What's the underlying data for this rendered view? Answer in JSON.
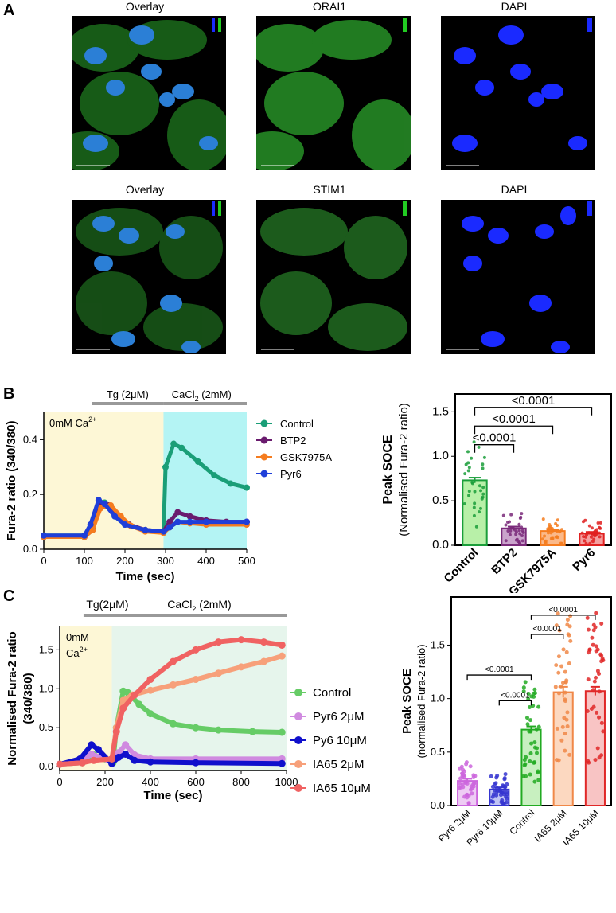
{
  "panels": {
    "a": {
      "letter": "A"
    },
    "b": {
      "letter": "B"
    },
    "c": {
      "letter": "C"
    }
  },
  "microscopy": {
    "row1": {
      "titles": [
        "Overlay",
        "ORAI1",
        "DAPI"
      ],
      "colors": [
        "#2aa12a",
        "#2aa12a",
        "#1020ff"
      ]
    },
    "row2": {
      "titles": [
        "Overlay",
        "STIM1",
        "DAPI"
      ],
      "colors": [
        "#2aa12a",
        "#2aa12a",
        "#1020ff"
      ]
    }
  },
  "chart_data": [
    {
      "id": "b_trace",
      "type": "line",
      "xlabel": "Time (sec)",
      "ylabel": "Fura-2 ratio (340/380)",
      "xlim": [
        0,
        500
      ],
      "ylim": [
        0,
        0.5
      ],
      "xticks": [
        0,
        100,
        200,
        300,
        400,
        500
      ],
      "yticks": [
        0.0,
        0.2,
        0.4
      ],
      "annotations": {
        "condition": "0mM Ca",
        "condition_sup": "2+",
        "bar1": "Tg (2μM)",
        "bar2_pre": "CaCl",
        "bar2_sub": "2",
        "bar2_post": " (2mM)"
      },
      "legend_position": "right",
      "series": [
        {
          "name": "Control",
          "color": "#1a9e77",
          "points": [
            [
              0,
              0.05
            ],
            [
              100,
              0.05
            ],
            [
              120,
              0.08
            ],
            [
              140,
              0.17
            ],
            [
              150,
              0.17
            ],
            [
              175,
              0.12
            ],
            [
              200,
              0.09
            ],
            [
              250,
              0.07
            ],
            [
              295,
              0.065
            ],
            [
              300,
              0.3
            ],
            [
              320,
              0.385
            ],
            [
              340,
              0.37
            ],
            [
              380,
              0.32
            ],
            [
              420,
              0.27
            ],
            [
              460,
              0.24
            ],
            [
              500,
              0.225
            ]
          ]
        },
        {
          "name": "BTP2",
          "color": "#6a1b6e",
          "points": [
            [
              0,
              0.045
            ],
            [
              100,
              0.045
            ],
            [
              120,
              0.07
            ],
            [
              140,
              0.16
            ],
            [
              160,
              0.16
            ],
            [
              185,
              0.12
            ],
            [
              210,
              0.09
            ],
            [
              250,
              0.07
            ],
            [
              295,
              0.065
            ],
            [
              310,
              0.1
            ],
            [
              330,
              0.135
            ],
            [
              360,
              0.12
            ],
            [
              400,
              0.105
            ],
            [
              450,
              0.1
            ],
            [
              500,
              0.1
            ]
          ]
        },
        {
          "name": "GSK7975A",
          "color": "#f57c1f",
          "points": [
            [
              0,
              0.045
            ],
            [
              100,
              0.045
            ],
            [
              120,
              0.07
            ],
            [
              140,
              0.15
            ],
            [
              165,
              0.16
            ],
            [
              190,
              0.12
            ],
            [
              215,
              0.085
            ],
            [
              250,
              0.065
            ],
            [
              295,
              0.06
            ],
            [
              310,
              0.08
            ],
            [
              330,
              0.1
            ],
            [
              360,
              0.095
            ],
            [
              400,
              0.09
            ],
            [
              500,
              0.09
            ]
          ]
        },
        {
          "name": "Pyr6",
          "color": "#1f3fd9",
          "points": [
            [
              0,
              0.05
            ],
            [
              100,
              0.05
            ],
            [
              115,
              0.09
            ],
            [
              135,
              0.18
            ],
            [
              150,
              0.165
            ],
            [
              175,
              0.12
            ],
            [
              200,
              0.09
            ],
            [
              250,
              0.07
            ],
            [
              295,
              0.065
            ],
            [
              310,
              0.08
            ],
            [
              330,
              0.1
            ],
            [
              360,
              0.1
            ],
            [
              400,
              0.1
            ],
            [
              500,
              0.1
            ]
          ]
        }
      ]
    },
    {
      "id": "b_bar",
      "type": "bar",
      "ylabel": "Peak SOCE",
      "ylabel2": "(Normalised Fura-2 ratio)",
      "categories": [
        "Control",
        "BTP2",
        "GSK7975A",
        "Pyr6"
      ],
      "values": [
        0.73,
        0.19,
        0.16,
        0.13
      ],
      "errors": [
        0.03,
        0.02,
        0.015,
        0.02
      ],
      "colors": [
        "#1a9e3a",
        "#7a2a7a",
        "#f57c1f",
        "#e02020"
      ],
      "fills": [
        "#b8f0a8",
        "#caa3cc",
        "#fbb98a",
        "#f4a0a0"
      ],
      "ylim": [
        0,
        1.7
      ],
      "yticks": [
        0.0,
        0.5,
        1.0,
        1.5
      ],
      "comparisons": [
        {
          "from": 0,
          "to": 1,
          "label": "<0.0001",
          "level": 1.13
        },
        {
          "from": 0,
          "to": 2,
          "label": "<0.0001",
          "level": 1.34
        },
        {
          "from": 0,
          "to": 3,
          "label": "<0.0001",
          "level": 1.55
        }
      ]
    },
    {
      "id": "c_trace",
      "type": "line",
      "xlabel": "Time (sec)",
      "ylabel": "Normalised Fura-2 ratio",
      "ylabel2": "(340/380)",
      "xlim": [
        0,
        1000
      ],
      "ylim": [
        -0.05,
        1.8
      ],
      "xticks": [
        0,
        200,
        400,
        600,
        800,
        1000
      ],
      "yticks": [
        0.0,
        0.5,
        1.0,
        1.5
      ],
      "annotations": {
        "condition1": "0mM",
        "condition2": "Ca",
        "condition_sup": "2+",
        "bar1": "Tg(2μM)",
        "bar2_pre": "CaCl",
        "bar2_sub": "2",
        "bar2_post": " (2mM)"
      },
      "legend_position": "right",
      "series": [
        {
          "name": "Control",
          "color": "#66cc66",
          "points": [
            [
              0,
              0.03
            ],
            [
              100,
              0.05
            ],
            [
              150,
              0.15
            ],
            [
              200,
              0.1
            ],
            [
              235,
              0.05
            ],
            [
              250,
              0.5
            ],
            [
              280,
              0.97
            ],
            [
              300,
              0.95
            ],
            [
              350,
              0.8
            ],
            [
              400,
              0.68
            ],
            [
              500,
              0.55
            ],
            [
              600,
              0.5
            ],
            [
              700,
              0.47
            ],
            [
              850,
              0.45
            ],
            [
              980,
              0.44
            ]
          ]
        },
        {
          "name": "Pyr6 2μM",
          "color": "#d08ae0",
          "points": [
            [
              0,
              0.03
            ],
            [
              100,
              0.08
            ],
            [
              140,
              0.16
            ],
            [
              180,
              0.12
            ],
            [
              230,
              0.05
            ],
            [
              260,
              0.18
            ],
            [
              290,
              0.28
            ],
            [
              330,
              0.15
            ],
            [
              400,
              0.1
            ],
            [
              600,
              0.1
            ],
            [
              980,
              0.1
            ]
          ]
        },
        {
          "name": "Py6 10μM",
          "color": "#1010cc",
          "points": [
            [
              0,
              0.03
            ],
            [
              90,
              0.1
            ],
            [
              140,
              0.28
            ],
            [
              170,
              0.22
            ],
            [
              230,
              0.04
            ],
            [
              260,
              0.12
            ],
            [
              290,
              0.16
            ],
            [
              330,
              0.08
            ],
            [
              400,
              0.06
            ],
            [
              600,
              0.05
            ],
            [
              980,
              0.04
            ]
          ]
        },
        {
          "name": "IA65 2μM",
          "color": "#f7a07a",
          "points": [
            [
              0,
              0.03
            ],
            [
              100,
              0.05
            ],
            [
              150,
              0.08
            ],
            [
              230,
              0.1
            ],
            [
              250,
              0.5
            ],
            [
              280,
              0.85
            ],
            [
              320,
              0.92
            ],
            [
              400,
              0.98
            ],
            [
              500,
              1.05
            ],
            [
              600,
              1.12
            ],
            [
              700,
              1.2
            ],
            [
              800,
              1.28
            ],
            [
              900,
              1.35
            ],
            [
              980,
              1.42
            ]
          ]
        },
        {
          "name": "IA65 10μM",
          "color": "#f06262",
          "points": [
            [
              0,
              0.03
            ],
            [
              100,
              0.05
            ],
            [
              150,
              0.08
            ],
            [
              230,
              0.1
            ],
            [
              250,
              0.45
            ],
            [
              280,
              0.75
            ],
            [
              330,
              0.92
            ],
            [
              400,
              1.12
            ],
            [
              500,
              1.35
            ],
            [
              600,
              1.5
            ],
            [
              700,
              1.6
            ],
            [
              800,
              1.63
            ],
            [
              900,
              1.6
            ],
            [
              980,
              1.56
            ]
          ]
        }
      ]
    },
    {
      "id": "c_bar",
      "type": "bar",
      "ylabel": "Peak SOCE",
      "ylabel2": "(normalised Fura-2 ratio)",
      "categories": [
        "Pyr6 2μM",
        "Pyr6 10μM",
        "Control",
        "IA65 2μM",
        "IA65 10μM"
      ],
      "values": [
        0.23,
        0.15,
        0.71,
        1.06,
        1.07
      ],
      "errors": [
        0.02,
        0.02,
        0.03,
        0.05,
        0.04
      ],
      "colors": [
        "#cc66dd",
        "#3535d0",
        "#22aa22",
        "#f08848",
        "#e02828"
      ],
      "fills": [
        "#eeccf4",
        "#c0c4f4",
        "#c8f0c0",
        "#fcd8c0",
        "#f8c4c4"
      ],
      "ylim": [
        0,
        1.95
      ],
      "yticks": [
        0.0,
        0.5,
        1.0,
        1.5
      ],
      "comparisons": [
        {
          "from": 0,
          "to": 2,
          "label": "<0.0001",
          "level": 1.22
        },
        {
          "from": 1,
          "to": 2,
          "label": "<0.0001",
          "level": 0.98
        },
        {
          "from": 2,
          "to": 3,
          "label": "<0.0001",
          "level": 1.6
        },
        {
          "from": 2,
          "to": 4,
          "label": "<0.0001",
          "level": 1.78
        }
      ]
    }
  ]
}
